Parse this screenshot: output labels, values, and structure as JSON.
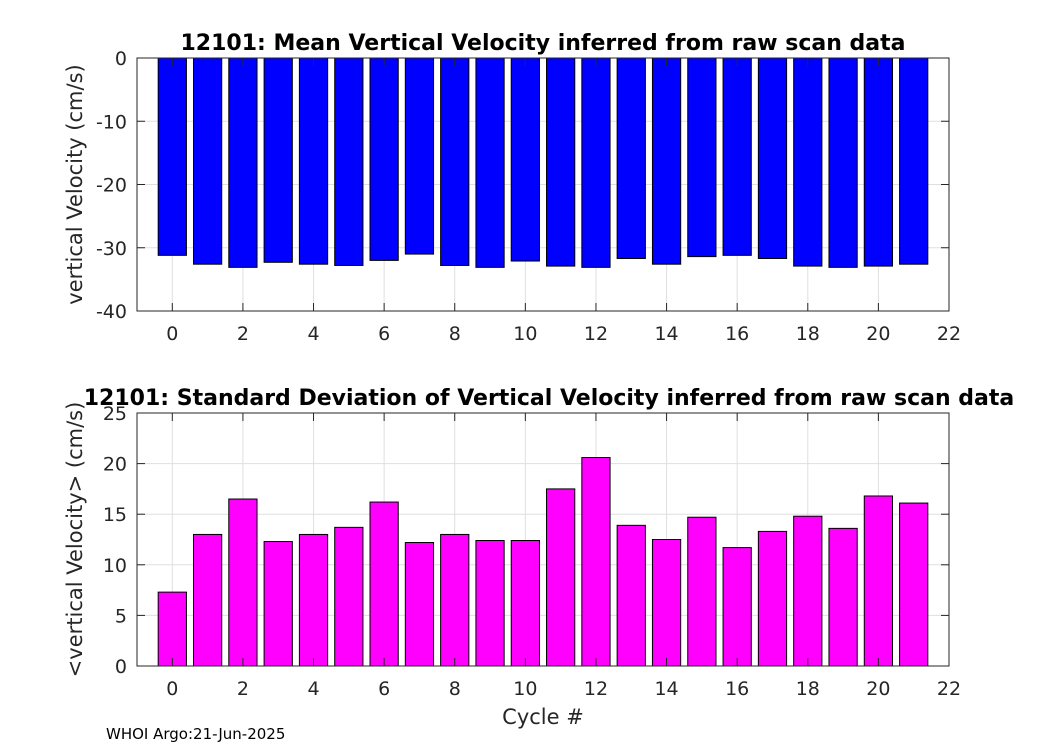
{
  "footer": "WHOI Argo:21-Jun-2025",
  "chart_data": [
    {
      "type": "bar",
      "title": "12101: Mean Vertical Velocity inferred from raw scan data",
      "xlabel": "",
      "ylabel": "vertical Velocity (cm/s)",
      "x": [
        0,
        1,
        2,
        3,
        4,
        5,
        6,
        7,
        8,
        9,
        10,
        11,
        12,
        13,
        14,
        15,
        16,
        17,
        18,
        19,
        20,
        21
      ],
      "values": [
        -31.2,
        -32.6,
        -33.1,
        -32.3,
        -32.6,
        -32.8,
        -32.0,
        -31.0,
        -32.8,
        -33.1,
        -32.1,
        -32.9,
        -33.1,
        -31.7,
        -32.6,
        -31.4,
        -31.2,
        -31.7,
        -32.9,
        -33.1,
        -32.9,
        -32.6
      ],
      "color": "#0000ff",
      "xlim": [
        -1,
        22
      ],
      "ylim": [
        -40,
        0
      ],
      "xticks": [
        0,
        2,
        4,
        6,
        8,
        10,
        12,
        14,
        16,
        18,
        20,
        22
      ],
      "yticks": [
        -40,
        -30,
        -20,
        -10,
        0
      ],
      "grid": true
    },
    {
      "type": "bar",
      "title": "12101: Standard Deviation of Vertical Velocity inferred from raw scan data",
      "xlabel": "Cycle #",
      "ylabel": "<vertical Velocity> (cm/s)",
      "x": [
        0,
        1,
        2,
        3,
        4,
        5,
        6,
        7,
        8,
        9,
        10,
        11,
        12,
        13,
        14,
        15,
        16,
        17,
        18,
        19,
        20,
        21
      ],
      "values": [
        7.3,
        13.0,
        16.5,
        12.3,
        13.0,
        13.7,
        16.2,
        12.2,
        13.0,
        12.4,
        12.4,
        17.5,
        20.6,
        13.9,
        12.5,
        14.7,
        11.7,
        13.3,
        14.8,
        13.6,
        16.8,
        16.1
      ],
      "color": "#ff00ff",
      "xlim": [
        -1,
        22
      ],
      "ylim": [
        0,
        25
      ],
      "xticks": [
        0,
        2,
        4,
        6,
        8,
        10,
        12,
        14,
        16,
        18,
        20,
        22
      ],
      "yticks": [
        0,
        5,
        10,
        15,
        20,
        25
      ],
      "grid": true
    }
  ]
}
